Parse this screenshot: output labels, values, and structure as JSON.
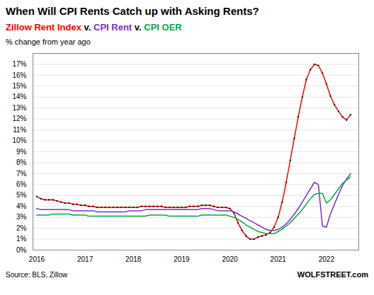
{
  "chart_data": {
    "type": "line",
    "title": "When Will CPI Rents Catch up with Asking Rents?",
    "subtitle": "Zillow Rent Index v. CPI Rent v. CPI OER",
    "ylabel": "% change from year ago",
    "source": "Source: BLS, Zillow",
    "watermark": "WOLFSTREET.com",
    "x": [
      2016.0,
      2016.083,
      2016.167,
      2016.25,
      2016.333,
      2016.417,
      2016.5,
      2016.583,
      2016.667,
      2016.75,
      2016.833,
      2016.917,
      2017.0,
      2017.083,
      2017.167,
      2017.25,
      2017.333,
      2017.417,
      2017.5,
      2017.583,
      2017.667,
      2017.75,
      2017.833,
      2017.917,
      2018.0,
      2018.083,
      2018.167,
      2018.25,
      2018.333,
      2018.417,
      2018.5,
      2018.583,
      2018.667,
      2018.75,
      2018.833,
      2018.917,
      2019.0,
      2019.083,
      2019.167,
      2019.25,
      2019.333,
      2019.417,
      2019.5,
      2019.583,
      2019.667,
      2019.75,
      2019.833,
      2019.917,
      2020.0,
      2020.083,
      2020.167,
      2020.25,
      2020.333,
      2020.417,
      2020.5,
      2020.583,
      2020.667,
      2020.75,
      2020.833,
      2020.917,
      2021.0,
      2021.083,
      2021.167,
      2021.25,
      2021.333,
      2021.417,
      2021.5,
      2021.583,
      2021.667,
      2021.75,
      2021.833,
      2021.917,
      2022.0,
      2022.083,
      2022.167,
      2022.25,
      2022.333,
      2022.417,
      2022.5
    ],
    "series": [
      {
        "name": "Zillow Rent Index",
        "color": "#FF0000",
        "marker": "dot",
        "values": [
          0.049,
          0.047,
          0.046,
          0.046,
          0.046,
          0.045,
          0.044,
          0.043,
          0.043,
          0.042,
          0.042,
          0.041,
          0.041,
          0.04,
          0.04,
          0.039,
          0.039,
          0.039,
          0.039,
          0.039,
          0.039,
          0.039,
          0.039,
          0.039,
          0.039,
          0.039,
          0.04,
          0.04,
          0.04,
          0.04,
          0.04,
          0.04,
          0.039,
          0.039,
          0.039,
          0.039,
          0.039,
          0.039,
          0.04,
          0.04,
          0.04,
          0.041,
          0.041,
          0.041,
          0.04,
          0.039,
          0.039,
          0.039,
          0.038,
          0.034,
          0.025,
          0.018,
          0.013,
          0.01,
          0.01,
          0.012,
          0.013,
          0.014,
          0.016,
          0.021,
          0.03,
          0.044,
          0.062,
          0.082,
          0.102,
          0.122,
          0.14,
          0.156,
          0.165,
          0.17,
          0.169,
          0.162,
          0.152,
          0.141,
          0.133,
          0.127,
          0.122,
          0.119,
          0.124
        ]
      },
      {
        "name": "CPI Rent",
        "color": "#7B2FBE",
        "values": [
          0.038,
          0.037,
          0.037,
          0.037,
          0.037,
          0.037,
          0.037,
          0.037,
          0.037,
          0.036,
          0.036,
          0.036,
          0.036,
          0.036,
          0.036,
          0.035,
          0.035,
          0.035,
          0.035,
          0.035,
          0.035,
          0.035,
          0.035,
          0.036,
          0.036,
          0.036,
          0.036,
          0.037,
          0.037,
          0.037,
          0.037,
          0.037,
          0.037,
          0.037,
          0.037,
          0.037,
          0.037,
          0.037,
          0.037,
          0.037,
          0.037,
          0.038,
          0.038,
          0.038,
          0.037,
          0.036,
          0.036,
          0.036,
          0.036,
          0.035,
          0.033,
          0.031,
          0.029,
          0.027,
          0.025,
          0.023,
          0.021,
          0.019,
          0.018,
          0.018,
          0.019,
          0.021,
          0.024,
          0.028,
          0.033,
          0.038,
          0.044,
          0.05,
          0.056,
          0.062,
          0.06,
          0.022,
          0.021,
          0.033,
          0.042,
          0.051,
          0.059,
          0.065,
          0.07
        ]
      },
      {
        "name": "CPI OER",
        "color": "#00AA44",
        "values": [
          0.032,
          0.032,
          0.032,
          0.032,
          0.033,
          0.033,
          0.033,
          0.033,
          0.033,
          0.032,
          0.032,
          0.032,
          0.032,
          0.031,
          0.031,
          0.031,
          0.031,
          0.031,
          0.031,
          0.031,
          0.031,
          0.031,
          0.031,
          0.031,
          0.031,
          0.031,
          0.031,
          0.031,
          0.032,
          0.032,
          0.032,
          0.032,
          0.032,
          0.031,
          0.031,
          0.031,
          0.031,
          0.031,
          0.031,
          0.031,
          0.031,
          0.032,
          0.032,
          0.032,
          0.032,
          0.032,
          0.032,
          0.032,
          0.031,
          0.03,
          0.028,
          0.026,
          0.023,
          0.021,
          0.019,
          0.017,
          0.016,
          0.015,
          0.015,
          0.015,
          0.017,
          0.019,
          0.022,
          0.025,
          0.029,
          0.033,
          0.037,
          0.042,
          0.047,
          0.051,
          0.052,
          0.052,
          0.043,
          0.046,
          0.051,
          0.056,
          0.061,
          0.064,
          0.067
        ]
      }
    ],
    "xlim": [
      2015.92,
      2022.67
    ],
    "xticks": [
      2016,
      2017,
      2018,
      2019,
      2020,
      2021,
      2022
    ],
    "ylim": [
      0.0,
      0.18
    ],
    "yticks": [
      {
        "value": 0.0,
        "label": "0%"
      },
      {
        "value": 0.01,
        "label": "1%"
      },
      {
        "value": 0.02,
        "label": "2%"
      },
      {
        "value": 0.03,
        "label": "3%"
      },
      {
        "value": 0.04,
        "label": "4%"
      },
      {
        "value": 0.05,
        "label": "5%"
      },
      {
        "value": 0.06,
        "label": "6%"
      },
      {
        "value": 0.07,
        "label": "7%"
      },
      {
        "value": 0.08,
        "label": "8%"
      },
      {
        "value": 0.09,
        "label": "9%"
      },
      {
        "value": 0.1,
        "label": "10%"
      },
      {
        "value": 0.11,
        "label": "11%"
      },
      {
        "value": 0.12,
        "label": "12%"
      },
      {
        "value": 0.13,
        "label": "13%"
      },
      {
        "value": 0.14,
        "label": "14%"
      },
      {
        "value": 0.15,
        "label": "15%"
      },
      {
        "value": 0.16,
        "label": "16%"
      },
      {
        "value": 0.17,
        "label": "17%"
      }
    ],
    "grid": true
  }
}
